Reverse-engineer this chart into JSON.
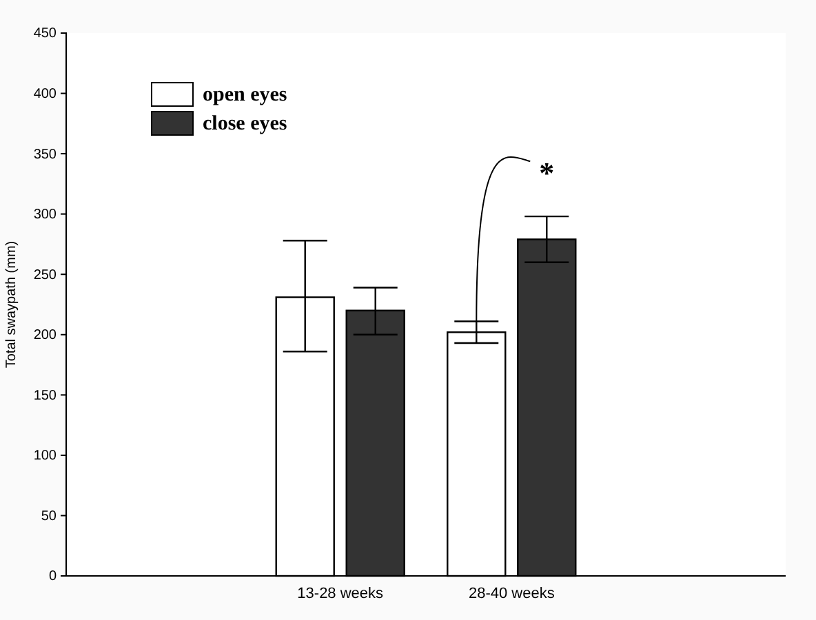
{
  "chart_data": {
    "type": "bar",
    "ylabel": "Total swaypath  (mm)",
    "categories": [
      "13-28 weeks",
      "28-40 weeks"
    ],
    "series": [
      {
        "name": "open eyes",
        "color": "#ffffff",
        "values": [
          231,
          202
        ],
        "errors": [
          [
            186,
            278
          ],
          [
            193,
            211
          ]
        ]
      },
      {
        "name": "close eyes",
        "color": "#333333",
        "values": [
          220,
          279
        ],
        "errors": [
          [
            200,
            239
          ],
          [
            260,
            298
          ]
        ]
      }
    ],
    "ylim": [
      0,
      450
    ],
    "yticks": [
      0,
      50,
      100,
      150,
      200,
      250,
      300,
      350,
      400,
      450
    ],
    "legend": "top left",
    "annotations": [
      "*"
    ]
  }
}
